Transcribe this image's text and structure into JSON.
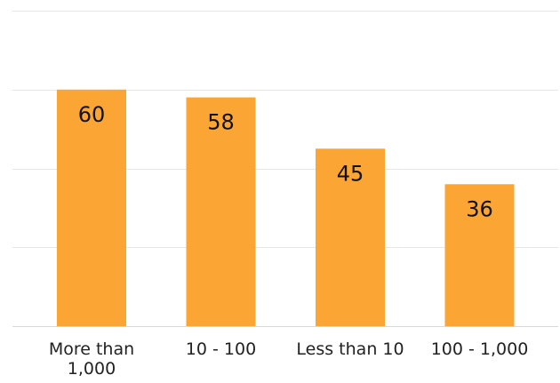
{
  "chart_data": {
    "type": "bar",
    "categories": [
      [
        "More than",
        "1,000"
      ],
      [
        "10 - 100"
      ],
      [
        "Less than 10"
      ],
      [
        "100 - 1,000"
      ]
    ],
    "values": [
      60,
      58,
      45,
      36
    ],
    "data_labels": [
      "60",
      "58",
      "45",
      "36"
    ],
    "ylim": [
      0,
      80
    ],
    "ytick_step": 20,
    "show_y_tick_labels": false,
    "grid": true,
    "title": "",
    "xlabel": "",
    "ylabel": "",
    "bar_color": "#FBA634",
    "grid_color": "#e6e6e6"
  }
}
